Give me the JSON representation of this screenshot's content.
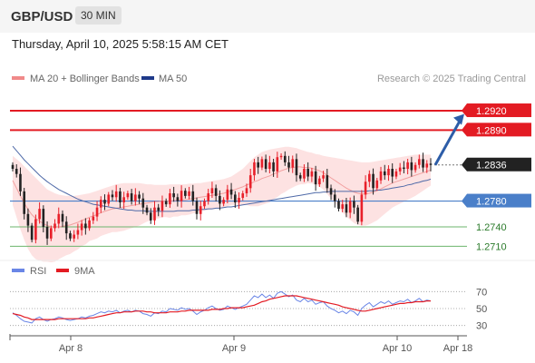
{
  "header": {
    "symbol": "GBP/USD",
    "timeframe": "30 MIN",
    "datetime": "Thursday, April 10, 2025 5:58:15 AM CET"
  },
  "colors": {
    "up": "#e8202a",
    "down": "#222222",
    "resistance": "#e31b23",
    "support": "#4a7fc9",
    "target": "#6db46d",
    "ma50": "#1f3a8a",
    "bollinger_fill": "#fde2e2",
    "rsi": "#6a86e6",
    "rsi_ma": "#e31b23",
    "arrow": "#2d5da8"
  },
  "chart_data": [
    {
      "type": "candlestick",
      "legend": [
        "MA 20 + Bollinger Bands",
        "MA 50"
      ],
      "credit": "Research © 2025 Trading Central",
      "ylim": [
        1.2695,
        1.2958
      ],
      "x_ticks": [
        "Apr 8",
        "Apr 9",
        "Apr 10",
        "Apr 18"
      ],
      "levels": [
        {
          "value": 1.292,
          "label": "1.2920",
          "kind": "resistance"
        },
        {
          "value": 1.289,
          "label": "1.2890",
          "kind": "resistance"
        },
        {
          "value": 1.2836,
          "label": "1.2836",
          "kind": "last"
        },
        {
          "value": 1.278,
          "label": "1.2780",
          "kind": "support"
        },
        {
          "value": 1.274,
          "label": "1.2740",
          "kind": "target"
        },
        {
          "value": 1.271,
          "label": "1.2710",
          "kind": "target"
        }
      ],
      "closes": [
        1.283,
        1.2822,
        1.2795,
        1.276,
        1.2742,
        1.272,
        1.2752,
        1.2768,
        1.274,
        1.2722,
        1.2738,
        1.2745,
        1.276,
        1.2748,
        1.273,
        1.2722,
        1.2728,
        1.2735,
        1.2745,
        1.2738,
        1.275,
        1.2756,
        1.277,
        1.2782,
        1.2776,
        1.279,
        1.2786,
        1.2795,
        1.2778,
        1.2786,
        1.2792,
        1.278,
        1.279,
        1.2784,
        1.277,
        1.2762,
        1.275,
        1.277,
        1.2765,
        1.278,
        1.2775,
        1.2792,
        1.2786,
        1.278,
        1.2796,
        1.2788,
        1.2795,
        1.278,
        1.276,
        1.2772,
        1.278,
        1.2792,
        1.28,
        1.2788,
        1.2776,
        1.2782,
        1.2798,
        1.279,
        1.2778,
        1.2785,
        1.2792,
        1.28,
        1.282,
        1.284,
        1.2832,
        1.2845,
        1.283,
        1.284,
        1.2826,
        1.2848,
        1.285,
        1.284,
        1.2832,
        1.2845,
        1.282,
        1.2815,
        1.283,
        1.2818,
        1.2826,
        1.2806,
        1.2815,
        1.282,
        1.28,
        1.279,
        1.278,
        1.2768,
        1.2775,
        1.2762,
        1.278,
        1.277,
        1.2748,
        1.279,
        1.281,
        1.2822,
        1.28,
        1.2812,
        1.2826,
        1.282,
        1.283,
        1.2818,
        1.2826,
        1.2832,
        1.283,
        1.284,
        1.2828,
        1.2836,
        1.2845,
        1.2832,
        1.2838,
        1.2836
      ],
      "ma20": [
        1.2812,
        1.28,
        1.2788,
        1.2777,
        1.2767,
        1.2759,
        1.2753,
        1.2749,
        1.2745,
        1.2742,
        1.274,
        1.2739,
        1.274,
        1.2741,
        1.2742,
        1.2743,
        1.2745,
        1.2747,
        1.275,
        1.2752,
        1.2755,
        1.2757,
        1.2759,
        1.2762,
        1.2764,
        1.2766,
        1.2768,
        1.2769,
        1.277,
        1.2771,
        1.2772,
        1.2773,
        1.2774,
        1.2775,
        1.2776,
        1.2777,
        1.2778,
        1.2779,
        1.2779,
        1.278,
        1.278,
        1.278,
        1.2781,
        1.2781,
        1.2782,
        1.2782,
        1.2783,
        1.2784,
        1.2785,
        1.2786,
        1.2787,
        1.2788,
        1.2789,
        1.279,
        1.2791,
        1.2792,
        1.2794,
        1.2796,
        1.2798,
        1.28,
        1.2802,
        1.2805,
        1.2807,
        1.281,
        1.2812,
        1.2815,
        1.2817,
        1.2819,
        1.2822,
        1.2824,
        1.2827,
        1.2829,
        1.2831,
        1.2832,
        1.2833,
        1.2833,
        1.2832,
        1.2832,
        1.2831,
        1.2829,
        1.2827,
        1.2824,
        1.282,
        1.2816,
        1.2812,
        1.2808,
        1.2804,
        1.28,
        1.2797,
        1.2794,
        1.2792,
        1.2791,
        1.2791,
        1.2792,
        1.2794,
        1.2796,
        1.2799,
        1.2802,
        1.2805,
        1.2808,
        1.281,
        1.2812,
        1.2814,
        1.2816,
        1.2818,
        1.282,
        1.2822,
        1.2824,
        1.2826,
        1.2828
      ],
      "bb_upper": [
        1.285,
        1.2845,
        1.284,
        1.2834,
        1.2828,
        1.2822,
        1.2816,
        1.281,
        1.2804,
        1.2798,
        1.2795,
        1.2792,
        1.279,
        1.2789,
        1.2788,
        1.2788,
        1.2788,
        1.2789,
        1.279,
        1.2791,
        1.2792,
        1.2794,
        1.2796,
        1.2798,
        1.28,
        1.2802,
        1.2804,
        1.2806,
        1.2807,
        1.2808,
        1.2808,
        1.2808,
        1.2808,
        1.2808,
        1.2807,
        1.2806,
        1.2806,
        1.2805,
        1.2805,
        1.2805,
        1.2805,
        1.2806,
        1.2806,
        1.2806,
        1.2806,
        1.2806,
        1.2807,
        1.2807,
        1.2808,
        1.2808,
        1.2809,
        1.281,
        1.2811,
        1.2812,
        1.2813,
        1.2814,
        1.2816,
        1.2818,
        1.2822,
        1.2826,
        1.283,
        1.2836,
        1.2842,
        1.2848,
        1.2852,
        1.2856,
        1.2858,
        1.286,
        1.2861,
        1.2862,
        1.2863,
        1.2864,
        1.2864,
        1.2863,
        1.2862,
        1.286,
        1.2858,
        1.2856,
        1.2855,
        1.2853,
        1.2852,
        1.285,
        1.2849,
        1.2848,
        1.2847,
        1.2846,
        1.2845,
        1.2844,
        1.2843,
        1.2842,
        1.2841,
        1.284,
        1.284,
        1.284,
        1.2841,
        1.2842,
        1.2843,
        1.2844,
        1.2845,
        1.2846,
        1.2847,
        1.2848,
        1.2849,
        1.285,
        1.2851,
        1.2852,
        1.2852,
        1.2852,
        1.2852,
        1.2852
      ],
      "bb_lower": [
        1.2774,
        1.2755,
        1.2736,
        1.272,
        1.2706,
        1.2696,
        1.269,
        1.2688,
        1.2686,
        1.2686,
        1.2685,
        1.2686,
        1.269,
        1.2693,
        1.2696,
        1.2698,
        1.2702,
        1.2705,
        1.271,
        1.2713,
        1.2718,
        1.272,
        1.2722,
        1.2726,
        1.2728,
        1.273,
        1.2732,
        1.2732,
        1.2733,
        1.2734,
        1.2736,
        1.2738,
        1.274,
        1.2742,
        1.2745,
        1.2748,
        1.275,
        1.2753,
        1.2753,
        1.2755,
        1.2755,
        1.2754,
        1.2756,
        1.2756,
        1.2758,
        1.2758,
        1.2759,
        1.2761,
        1.2762,
        1.2764,
        1.2765,
        1.2766,
        1.2767,
        1.2768,
        1.2769,
        1.277,
        1.2772,
        1.2774,
        1.2774,
        1.2774,
        1.2774,
        1.2774,
        1.2772,
        1.2772,
        1.2772,
        1.2774,
        1.2776,
        1.2778,
        1.2783,
        1.2786,
        1.2791,
        1.2794,
        1.2798,
        1.2801,
        1.2804,
        1.2806,
        1.2806,
        1.2808,
        1.2807,
        1.2805,
        1.2802,
        1.2798,
        1.2791,
        1.2784,
        1.2777,
        1.277,
        1.2763,
        1.2756,
        1.2751,
        1.2746,
        1.2743,
        1.2742,
        1.2742,
        1.2744,
        1.2747,
        1.275,
        1.2755,
        1.276,
        1.2765,
        1.277,
        1.2773,
        1.2776,
        1.2779,
        1.2782,
        1.2785,
        1.2788,
        1.2792,
        1.2796,
        1.28,
        1.2804
      ],
      "ma50": [
        1.2865,
        1.2858,
        1.2851,
        1.2844,
        1.2838,
        1.2832,
        1.2826,
        1.282,
        1.2815,
        1.281,
        1.2806,
        1.2802,
        1.2798,
        1.2795,
        1.2792,
        1.2789,
        1.2786,
        1.2783,
        1.2781,
        1.2779,
        1.2777,
        1.2775,
        1.2774,
        1.2773,
        1.2772,
        1.2771,
        1.277,
        1.2769,
        1.2768,
        1.2767,
        1.2766,
        1.2766,
        1.2765,
        1.2765,
        1.2765,
        1.2764,
        1.2764,
        1.2764,
        1.2764,
        1.2764,
        1.2764,
        1.2764,
        1.2764,
        1.2765,
        1.2765,
        1.2765,
        1.2765,
        1.2766,
        1.2766,
        1.2767,
        1.2767,
        1.2768,
        1.2768,
        1.2769,
        1.2769,
        1.277,
        1.2771,
        1.2771,
        1.2772,
        1.2773,
        1.2774,
        1.2775,
        1.2776,
        1.2777,
        1.2778,
        1.2779,
        1.278,
        1.2781,
        1.2782,
        1.2783,
        1.2784,
        1.2785,
        1.2786,
        1.2787,
        1.2788,
        1.2789,
        1.279,
        1.2791,
        1.2792,
        1.2793,
        1.2793,
        1.2794,
        1.2794,
        1.2795,
        1.2795,
        1.2795,
        1.2795,
        1.2795,
        1.2795,
        1.2795,
        1.2795,
        1.2795,
        1.2795,
        1.2796,
        1.2796,
        1.2797,
        1.2797,
        1.2798,
        1.2799,
        1.28,
        1.2801,
        1.2802,
        1.2803,
        1.2805,
        1.2806,
        1.2808,
        1.2809,
        1.2811,
        1.2812,
        1.2814
      ]
    },
    {
      "type": "line",
      "legend": [
        "RSI",
        "9MA"
      ],
      "ylim": [
        20,
        80
      ],
      "y_ticks": [
        70,
        50,
        30
      ],
      "reference_lines": [
        70,
        50,
        30
      ],
      "rsi": [
        45,
        42,
        38,
        35,
        34,
        33,
        38,
        40,
        37,
        35,
        37,
        38,
        40,
        39,
        37,
        36,
        37,
        38,
        40,
        39,
        41,
        42,
        44,
        46,
        45,
        47,
        46,
        48,
        45,
        47,
        48,
        46,
        48,
        47,
        44,
        43,
        41,
        45,
        44,
        47,
        46,
        50,
        49,
        48,
        51,
        49,
        50,
        47,
        43,
        46,
        48,
        51,
        53,
        50,
        48,
        49,
        53,
        51,
        49,
        51,
        53,
        55,
        60,
        65,
        63,
        67,
        63,
        66,
        62,
        68,
        70,
        67,
        64,
        66,
        60,
        58,
        62,
        58,
        60,
        55,
        57,
        58,
        53,
        50,
        48,
        45,
        47,
        44,
        48,
        46,
        42,
        50,
        54,
        57,
        52,
        55,
        58,
        56,
        59,
        55,
        57,
        59,
        58,
        61,
        57,
        59,
        62,
        58,
        60,
        59
      ],
      "rsi_ma": [
        44,
        43,
        42,
        40,
        39,
        37,
        37,
        37,
        37,
        37,
        37,
        37,
        38,
        38,
        38,
        38,
        38,
        38,
        38,
        38,
        39,
        39,
        40,
        41,
        42,
        43,
        44,
        45,
        45,
        46,
        46,
        46,
        47,
        47,
        47,
        46,
        46,
        45,
        45,
        45,
        45,
        46,
        46,
        46,
        47,
        47,
        48,
        48,
        48,
        48,
        48,
        48,
        49,
        49,
        49,
        50,
        50,
        51,
        51,
        51,
        51,
        52,
        53,
        54,
        56,
        58,
        59,
        61,
        62,
        63,
        64,
        65,
        65,
        65,
        65,
        64,
        63,
        62,
        61,
        60,
        59,
        58,
        57,
        56,
        55,
        54,
        52,
        51,
        50,
        49,
        48,
        47,
        47,
        48,
        49,
        50,
        51,
        52,
        53,
        54,
        55,
        56,
        56,
        57,
        57,
        58,
        58,
        58,
        59,
        59
      ]
    }
  ]
}
